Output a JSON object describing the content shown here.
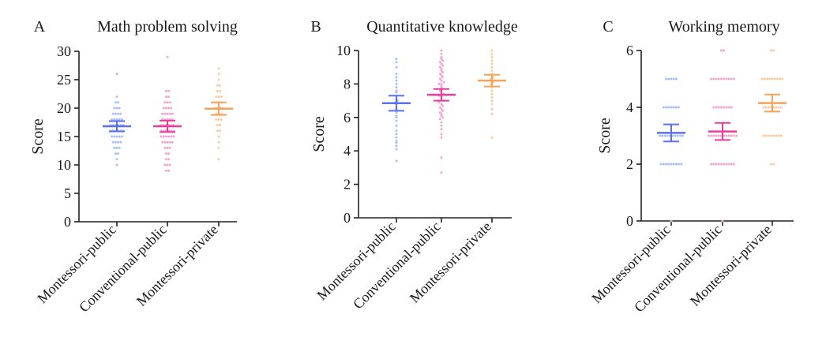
{
  "chart_data": [
    {
      "type": "scatter",
      "panel_label": "A",
      "title": "Math problem solving",
      "ylabel": "Score",
      "ylim": [
        0,
        30
      ],
      "yticks": [
        "0",
        "5",
        "10",
        "15",
        "20",
        "25",
        "30"
      ],
      "yticks_values": [
        0,
        5,
        10,
        15,
        20,
        25,
        30
      ],
      "categories": [
        "Montessori-public",
        "Conventional-public",
        "Montessori-private"
      ],
      "series": [
        {
          "name": "Montessori-public",
          "color": "#5b6ff0",
          "point_color": "#a9bff7",
          "mean": 16.8,
          "ci": [
            15.9,
            17.7
          ],
          "points": [
            10,
            11,
            12,
            12,
            13,
            13,
            13,
            14,
            14,
            14,
            14,
            15,
            15,
            15,
            15,
            15,
            16,
            16,
            16,
            16,
            16,
            16,
            17,
            17,
            17,
            17,
            17,
            17,
            18,
            18,
            18,
            18,
            18,
            19,
            19,
            19,
            19,
            20,
            20,
            20,
            21,
            21,
            22,
            26
          ]
        },
        {
          "name": "Conventional-public",
          "color": "#e83c9c",
          "point_color": "#f3a6d0",
          "mean": 16.8,
          "ci": [
            15.8,
            17.8
          ],
          "points": [
            9,
            9,
            10,
            10,
            10,
            11,
            11,
            12,
            12,
            13,
            13,
            13,
            14,
            14,
            14,
            14,
            14,
            15,
            15,
            15,
            15,
            15,
            15,
            16,
            16,
            16,
            16,
            16,
            16,
            17,
            17,
            17,
            17,
            17,
            17,
            18,
            18,
            18,
            18,
            18,
            19,
            19,
            19,
            19,
            19,
            20,
            20,
            20,
            20,
            21,
            21,
            21,
            22,
            22,
            23,
            23,
            29
          ]
        },
        {
          "name": "Montessori-private",
          "color": "#f5a25a",
          "point_color": "#f8cc9e",
          "mean": 19.9,
          "ci": [
            18.8,
            21.0
          ],
          "points": [
            11,
            13,
            14,
            15,
            16,
            16,
            17,
            17,
            18,
            18,
            18,
            19,
            19,
            19,
            20,
            20,
            20,
            20,
            21,
            21,
            21,
            22,
            22,
            22,
            23,
            23,
            24,
            24,
            25,
            26,
            27
          ]
        }
      ]
    },
    {
      "type": "scatter",
      "panel_label": "B",
      "title": "Quantitative knowledge",
      "ylabel": "Score",
      "ylim": [
        0,
        10
      ],
      "yticks": [
        "0",
        "2",
        "4",
        "6",
        "8",
        "10"
      ],
      "yticks_values": [
        0,
        2,
        4,
        6,
        8,
        10
      ],
      "categories": [
        "Montessori-public",
        "Conventional-public",
        "Montessori-private"
      ],
      "series": [
        {
          "name": "Montessori-public",
          "color": "#5b6ff0",
          "point_color": "#a9bff7",
          "mean": 6.85,
          "ci": [
            6.4,
            7.3
          ],
          "points": [
            3.4,
            4.1,
            4.3,
            4.5,
            4.6,
            4.8,
            5.0,
            5.2,
            5.5,
            5.8,
            6.0,
            6.1,
            6.3,
            6.5,
            6.6,
            6.8,
            6.9,
            7.0,
            7.1,
            7.3,
            7.5,
            7.6,
            7.8,
            8.0,
            8.2,
            8.4,
            8.6,
            9.0,
            9.3,
            9.5
          ]
        },
        {
          "name": "Conventional-public",
          "color": "#e83c9c",
          "point_color": "#f3a6d0",
          "mean": 7.35,
          "ci": [
            7.0,
            7.7
          ],
          "points": [
            2.7,
            3.6,
            4.8,
            5.0,
            5.3,
            5.5,
            5.7,
            5.9,
            6.0,
            6.1,
            6.2,
            6.3,
            6.4,
            6.5,
            6.6,
            6.7,
            6.8,
            6.9,
            7.0,
            7.0,
            7.1,
            7.2,
            7.3,
            7.3,
            7.4,
            7.5,
            7.6,
            7.7,
            7.8,
            7.9,
            8.0,
            8.0,
            8.1,
            8.2,
            8.3,
            8.4,
            8.5,
            8.6,
            8.7,
            8.8,
            8.9,
            9.0,
            9.1,
            9.2,
            9.3,
            9.4,
            9.5,
            9.6,
            9.8,
            10.0
          ]
        },
        {
          "name": "Montessori-private",
          "color": "#f5a25a",
          "point_color": "#f8cc9e",
          "mean": 8.2,
          "ci": [
            7.85,
            8.55
          ],
          "points": [
            4.8,
            6.2,
            6.5,
            6.8,
            7.0,
            7.2,
            7.4,
            7.6,
            7.8,
            8.0,
            8.1,
            8.2,
            8.3,
            8.4,
            8.5,
            8.6,
            8.8,
            9.0,
            9.2,
            9.4,
            9.6,
            9.8,
            10.0
          ]
        }
      ]
    },
    {
      "type": "scatter",
      "panel_label": "C",
      "title": "Working memory",
      "ylabel": "Score",
      "ylim": [
        0,
        6
      ],
      "yticks": [
        "0",
        "2",
        "4",
        "6"
      ],
      "yticks_values": [
        0,
        2,
        4,
        6
      ],
      "categories": [
        "Montessori-public",
        "Conventional-public",
        "Montessori-private"
      ],
      "series": [
        {
          "name": "Montessori-public",
          "color": "#5b6ff0",
          "point_color": "#a9bff7",
          "mean": 3.1,
          "ci": [
            2.8,
            3.4
          ],
          "points": [
            0,
            2,
            2,
            2,
            2,
            2,
            2,
            2,
            2,
            2,
            3,
            3,
            3,
            3,
            3,
            3,
            3,
            3,
            3,
            3,
            4,
            4,
            4,
            4,
            4,
            4,
            4,
            5,
            5,
            5,
            5,
            5
          ]
        },
        {
          "name": "Conventional-public",
          "color": "#e83c9c",
          "point_color": "#f3a6d0",
          "mean": 3.15,
          "ci": [
            2.85,
            3.45
          ],
          "points": [
            0,
            2,
            2,
            2,
            2,
            2,
            2,
            2,
            2,
            2,
            2,
            3,
            3,
            3,
            3,
            3,
            3,
            3,
            3,
            3,
            3,
            3,
            3,
            4,
            4,
            4,
            4,
            4,
            4,
            4,
            4,
            5,
            5,
            5,
            5,
            5,
            5,
            5,
            5,
            5,
            5,
            6,
            6
          ]
        },
        {
          "name": "Montessori-private",
          "color": "#f5a25a",
          "point_color": "#f8cc9e",
          "mean": 4.15,
          "ci": [
            3.85,
            4.45
          ],
          "points": [
            2,
            2,
            3,
            3,
            3,
            3,
            3,
            3,
            3,
            3,
            4,
            4,
            4,
            4,
            4,
            4,
            4,
            4,
            5,
            5,
            5,
            5,
            5,
            5,
            5,
            5,
            5,
            6,
            6
          ]
        }
      ]
    }
  ]
}
